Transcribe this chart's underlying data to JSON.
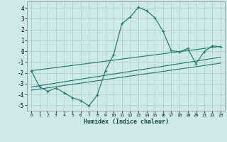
{
  "xlabel": "Humidex (Indice chaleur)",
  "bg_color": "#ceeae8",
  "line_color": "#2a7d6e",
  "grid_color": "#b0d0ce",
  "xlim": [
    -0.5,
    23.5
  ],
  "ylim": [
    -5.5,
    4.6
  ],
  "xticks": [
    0,
    1,
    2,
    3,
    4,
    5,
    6,
    7,
    8,
    9,
    10,
    11,
    12,
    13,
    14,
    15,
    16,
    17,
    18,
    19,
    20,
    21,
    22,
    23
  ],
  "yticks": [
    -5,
    -4,
    -3,
    -2,
    -1,
    0,
    1,
    2,
    3,
    4
  ],
  "series1_x": [
    0,
    1,
    2,
    3,
    4,
    5,
    6,
    7,
    8,
    9,
    10,
    11,
    12,
    13,
    14,
    15,
    16,
    17,
    18,
    19,
    20,
    21,
    22,
    23
  ],
  "series1_y": [
    -1.8,
    -3.3,
    -3.7,
    -3.4,
    -3.85,
    -4.3,
    -4.55,
    -5.05,
    -4.05,
    -1.8,
    -0.3,
    2.55,
    3.15,
    4.05,
    3.75,
    3.1,
    1.85,
    0.05,
    -0.05,
    0.25,
    -1.15,
    -0.05,
    0.5,
    0.4
  ],
  "series2_x": [
    0,
    23
  ],
  "series2_y": [
    -1.8,
    0.45
  ],
  "series3_x": [
    0,
    23
  ],
  "series3_y": [
    -3.3,
    -0.55
  ],
  "series4_x": [
    0,
    23
  ],
  "series4_y": [
    -3.6,
    -1.1
  ]
}
